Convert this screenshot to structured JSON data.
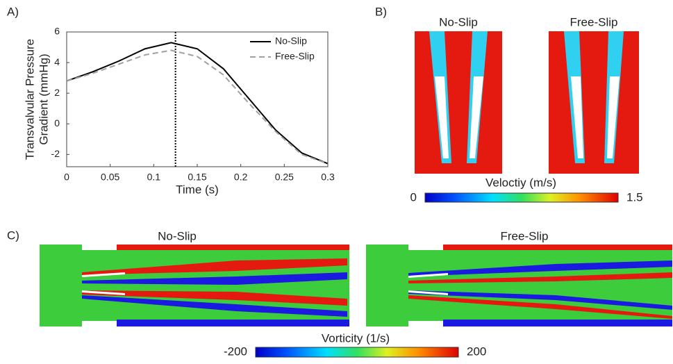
{
  "panel_labels": [
    "A)",
    "B)",
    "C)"
  ],
  "chart_data": {
    "type": "line",
    "ylabel": [
      "Transvalvular Pressure",
      "Gradient (mmHg)"
    ],
    "xlabel": "Time (s)",
    "x": [
      0,
      0.03,
      0.06,
      0.09,
      0.12,
      0.15,
      0.18,
      0.21,
      0.24,
      0.27,
      0.3
    ],
    "series": [
      {
        "name": "No-Slip",
        "color": "#000000",
        "dash": false,
        "values": [
          2.8,
          3.4,
          4.1,
          4.9,
          5.3,
          4.9,
          3.6,
          1.6,
          -0.4,
          -1.9,
          -2.6
        ]
      },
      {
        "name": "Free-Slip",
        "color": "#a0a0a0",
        "dash": true,
        "values": [
          2.8,
          3.3,
          3.9,
          4.5,
          4.8,
          4.4,
          3.2,
          1.3,
          -0.5,
          -2.0,
          -2.6
        ]
      }
    ],
    "marker_x": 0.125,
    "xlim": [
      0,
      0.3
    ],
    "xticks": [
      0,
      0.05,
      0.1,
      0.15,
      0.2,
      0.25,
      0.3
    ],
    "ylim": [
      -2.8,
      6
    ],
    "yticks": [
      -2,
      0,
      2,
      4,
      6
    ],
    "legend": "upper right"
  },
  "velocity_panel": {
    "titles": [
      "No-Slip",
      "Free-Slip"
    ],
    "colorbar": {
      "label": "Veloctiy (m/s)",
      "ticks": [
        0,
        1.5
      ]
    }
  },
  "vorticity_panel": {
    "titles": [
      "No-Slip",
      "Free-Slip"
    ],
    "colorbar": {
      "label": "Vorticity (1/s)",
      "ticks": [
        -200,
        200
      ]
    }
  }
}
